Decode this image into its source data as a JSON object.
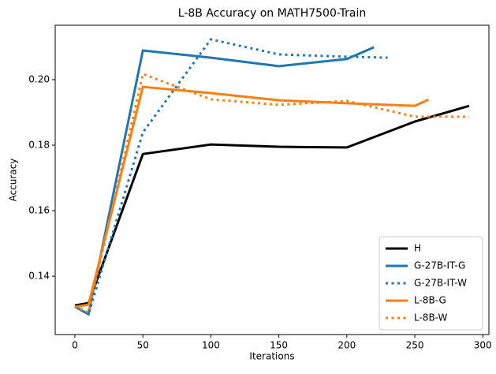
{
  "chart_data": {
    "type": "line",
    "title": "L-8B Accuracy on MATH7500-Train",
    "x_label": "Iterations",
    "y_label": "Accuracy",
    "xlim": [
      -14.5,
      304.5
    ],
    "xticks": [
      0,
      50,
      100,
      150,
      200,
      250,
      300
    ],
    "ylim": [
      0.1222,
      0.2166
    ],
    "yticks": [
      {
        "value": 0.14,
        "label": "0.14"
      },
      {
        "value": 0.16,
        "label": "0.16"
      },
      {
        "value": 0.18,
        "label": "0.18"
      },
      {
        "value": 0.2,
        "label": "0.20"
      }
    ],
    "legend": "lower right",
    "series": [
      {
        "name": "H",
        "color": "#000000",
        "linestyle": "solid",
        "x": [
          0,
          10,
          50,
          100,
          150,
          200,
          250,
          290
        ],
        "values": [
          0.1311,
          0.1318,
          0.1773,
          0.1802,
          0.1795,
          0.1793,
          0.1872,
          0.192
        ]
      },
      {
        "name": "G-27B-IT-G",
        "color": "#1f77b4",
        "linestyle": "solid",
        "x": [
          0,
          10,
          50,
          100,
          150,
          200,
          220
        ],
        "values": [
          0.1307,
          0.1284,
          0.2089,
          0.2067,
          0.2041,
          0.2063,
          0.2099
        ]
      },
      {
        "name": "G-27B-IT-W",
        "color": "#1f77b4",
        "linestyle": "dotted",
        "x": [
          0,
          10,
          50,
          100,
          150,
          200,
          230
        ],
        "values": [
          0.1307,
          0.1284,
          0.1839,
          0.2123,
          0.2077,
          0.207,
          0.2067
        ]
      },
      {
        "name": "L-8B-G",
        "color": "#ff7f0e",
        "linestyle": "solid",
        "x": [
          0,
          10,
          50,
          100,
          150,
          200,
          250,
          260
        ],
        "values": [
          0.1307,
          0.1313,
          0.1978,
          0.1959,
          0.1937,
          0.1928,
          0.192,
          0.1939
        ]
      },
      {
        "name": "L-8B-W",
        "color": "#ff7f0e",
        "linestyle": "dotted",
        "x": [
          0,
          10,
          50,
          100,
          150,
          200,
          250,
          290
        ],
        "values": [
          0.1307,
          0.129,
          0.2017,
          0.194,
          0.1923,
          0.1935,
          0.1887,
          0.1887
        ]
      }
    ]
  }
}
